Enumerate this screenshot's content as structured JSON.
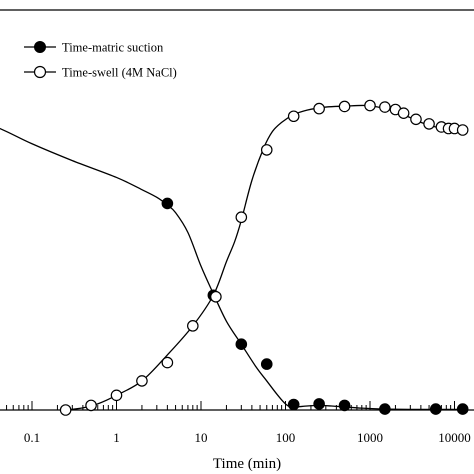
{
  "chart_data": {
    "type": "line",
    "title": "",
    "xlabel": "Time (min)",
    "ylabel": "",
    "x_scale": "log",
    "xlim": [
      0.02,
      14000
    ],
    "ylim": [
      0,
      100
    ],
    "grid": false,
    "legend_position": "top-left",
    "x_tick_labels": [
      {
        "value": 0.1,
        "label": "0.1"
      },
      {
        "value": 1,
        "label": "1"
      },
      {
        "value": 10,
        "label": "10"
      },
      {
        "value": 100,
        "label": "100"
      },
      {
        "value": 1000,
        "label": "1000"
      },
      {
        "value": 10000,
        "label": "10000"
      }
    ],
    "series": [
      {
        "name": "Time-matric suction",
        "marker": "filled-circle",
        "color": "#000000",
        "curve": [
          [
            0.02,
            96
          ],
          [
            0.05,
            91
          ],
          [
            0.1,
            87
          ],
          [
            0.3,
            81.5
          ],
          [
            1,
            76
          ],
          [
            2,
            72
          ],
          [
            3,
            69.5
          ],
          [
            4,
            67
          ],
          [
            5,
            64.5
          ],
          [
            7,
            58
          ],
          [
            10,
            47
          ],
          [
            14,
            38
          ],
          [
            20,
            29
          ],
          [
            30,
            21.5
          ],
          [
            45,
            14
          ],
          [
            60,
            9.5
          ],
          [
            80,
            5
          ],
          [
            100,
            2
          ],
          [
            120,
            1
          ],
          [
            180,
            1.3
          ],
          [
            250,
            1.5
          ],
          [
            350,
            1.3
          ],
          [
            500,
            1
          ],
          [
            800,
            0.6
          ],
          [
            1500,
            0.3
          ],
          [
            3000,
            0.2
          ],
          [
            6000,
            0.2
          ],
          [
            14000,
            0.2
          ]
        ],
        "points": [
          [
            4,
            67.5
          ],
          [
            14,
            37.5
          ],
          [
            30,
            21.5
          ],
          [
            60,
            15
          ],
          [
            125,
            1.8
          ],
          [
            250,
            2
          ],
          [
            500,
            1.5
          ],
          [
            1500,
            0.3
          ],
          [
            6000,
            0.3
          ],
          [
            12500,
            0.3
          ]
        ]
      },
      {
        "name": "Time-swell (4M NaCl)",
        "marker": "open-circle",
        "color": "#000000",
        "curve": [
          [
            0.25,
            0
          ],
          [
            0.4,
            0.7
          ],
          [
            0.6,
            2
          ],
          [
            1,
            4.8
          ],
          [
            2,
            9.5
          ],
          [
            4,
            18
          ],
          [
            8,
            27.5
          ],
          [
            14,
            37.5
          ],
          [
            20,
            48.5
          ],
          [
            25,
            55
          ],
          [
            30,
            62
          ],
          [
            40,
            75
          ],
          [
            55,
            85.5
          ],
          [
            70,
            91
          ],
          [
            90,
            94
          ],
          [
            125,
            96.5
          ],
          [
            180,
            98
          ],
          [
            300,
            99
          ],
          [
            500,
            99.3
          ],
          [
            900,
            99.5
          ],
          [
            1500,
            98.5
          ],
          [
            2500,
            96.5
          ],
          [
            4000,
            94
          ],
          [
            6000,
            92.5
          ],
          [
            10000,
            91.5
          ],
          [
            14000,
            91
          ]
        ],
        "points": [
          [
            0.25,
            0
          ],
          [
            0.5,
            1.5
          ],
          [
            1,
            4.8
          ],
          [
            2,
            9.5
          ],
          [
            4,
            15.5
          ],
          [
            8,
            27.5
          ],
          [
            15,
            37
          ],
          [
            30,
            63
          ],
          [
            60,
            85
          ],
          [
            125,
            96
          ],
          [
            250,
            98.5
          ],
          [
            500,
            99.2
          ],
          [
            1000,
            99.5
          ],
          [
            1500,
            99
          ],
          [
            2000,
            98.2
          ],
          [
            2500,
            97
          ],
          [
            3500,
            95
          ],
          [
            5000,
            93.5
          ],
          [
            7000,
            92.5
          ],
          [
            8500,
            92
          ],
          [
            10000,
            92
          ],
          [
            12500,
            91.5
          ]
        ]
      }
    ]
  }
}
